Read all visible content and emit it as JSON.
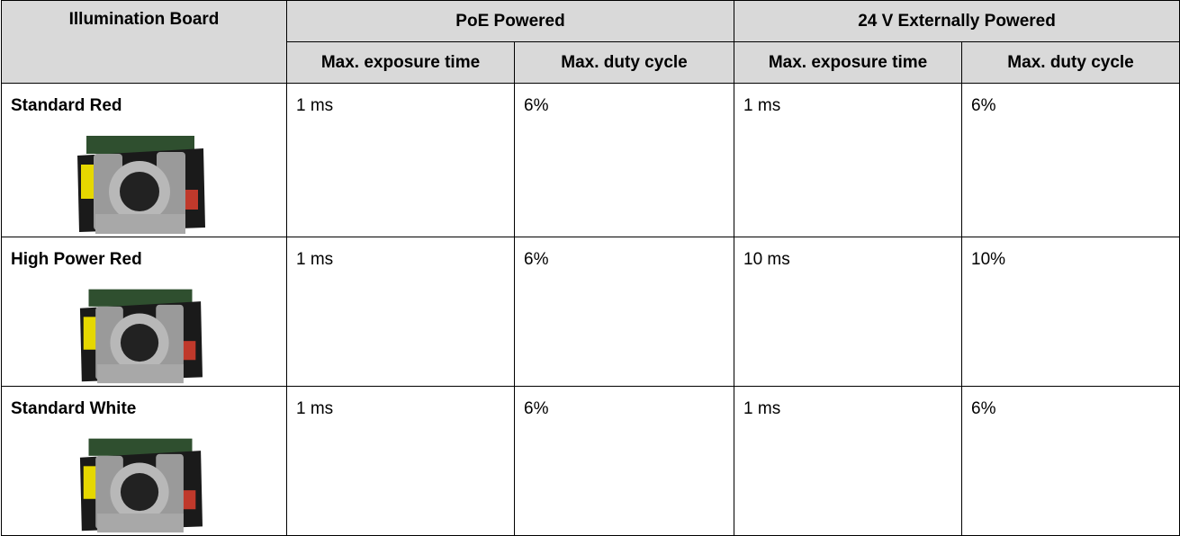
{
  "table": {
    "header": {
      "group_row": [
        "Illumination Board",
        "PoE Powered",
        "24 V Externally Powered"
      ],
      "sub_row": [
        "Max. exposure time",
        "Max. duty cycle",
        "Max. exposure time",
        "Max. duty cycle"
      ]
    },
    "rows": [
      [
        "Standard Red",
        "1 ms",
        "6%",
        "1 ms",
        "6%"
      ],
      [
        "High Power Red",
        "1 ms",
        "6%",
        "10 ms",
        "10%"
      ],
      [
        "Standard White",
        "1 ms",
        "6%",
        "1 ms",
        "6%"
      ]
    ]
  }
}
